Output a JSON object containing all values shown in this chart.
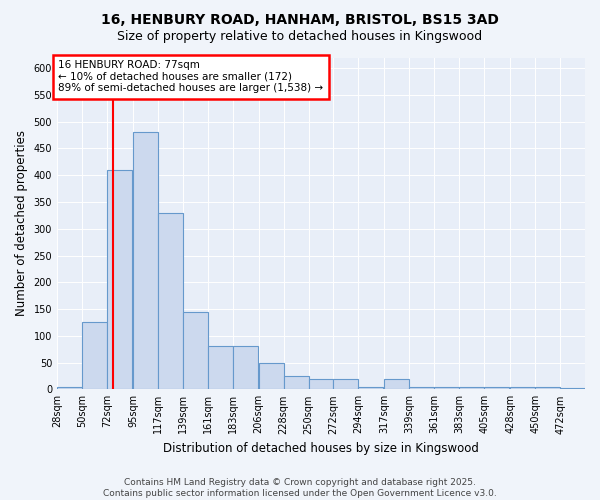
{
  "title_line1": "16, HENBURY ROAD, HANHAM, BRISTOL, BS15 3AD",
  "title_line2": "Size of property relative to detached houses in Kingswood",
  "xlabel": "Distribution of detached houses by size in Kingswood",
  "ylabel": "Number of detached properties",
  "bins": [
    28,
    50,
    72,
    95,
    117,
    139,
    161,
    183,
    206,
    228,
    250,
    272,
    294,
    317,
    339,
    361,
    383,
    405,
    428,
    450,
    472
  ],
  "counts": [
    5,
    125,
    410,
    480,
    330,
    145,
    80,
    80,
    50,
    25,
    20,
    20,
    5,
    20,
    5,
    5,
    5,
    5,
    5,
    5,
    3
  ],
  "bar_color": "#ccd9ee",
  "bar_edge_color": "#6699cc",
  "annotation_text": "16 HENBURY ROAD: 77sqm\n← 10% of detached houses are smaller (172)\n89% of semi-detached houses are larger (1,538) →",
  "annotation_box_color": "white",
  "annotation_box_edge_color": "red",
  "vline_x": 77,
  "vline_color": "red",
  "ylim": [
    0,
    620
  ],
  "yticks": [
    0,
    50,
    100,
    150,
    200,
    250,
    300,
    350,
    400,
    450,
    500,
    550,
    600
  ],
  "bg_color": "#f0f4fa",
  "plot_bg_color": "#e8eef8",
  "footer_text": "Contains HM Land Registry data © Crown copyright and database right 2025.\nContains public sector information licensed under the Open Government Licence v3.0.",
  "title_fontsize": 10,
  "subtitle_fontsize": 9,
  "axis_label_fontsize": 8.5,
  "tick_fontsize": 7,
  "footer_fontsize": 6.5,
  "annotation_fontsize": 7.5
}
